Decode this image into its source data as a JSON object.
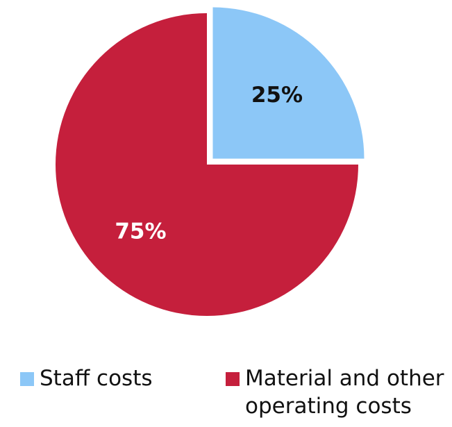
{
  "chart_data": {
    "type": "pie",
    "title": "",
    "series": [
      {
        "name": "Staff costs",
        "value": 25,
        "label": "25%",
        "color": "#8cc7f7",
        "label_color": "#111111"
      },
      {
        "name": "Material and other operating costs",
        "value": 75,
        "label": "75%",
        "color": "#c51f3c",
        "label_color": "#ffffff"
      }
    ],
    "legend": {
      "placement": "bottom",
      "items": [
        {
          "label": "Staff costs",
          "color": "#8cc7f7"
        },
        {
          "label": "Material and other operating costs",
          "color": "#c51f3c"
        }
      ]
    },
    "exploded_slice": "Staff costs"
  }
}
